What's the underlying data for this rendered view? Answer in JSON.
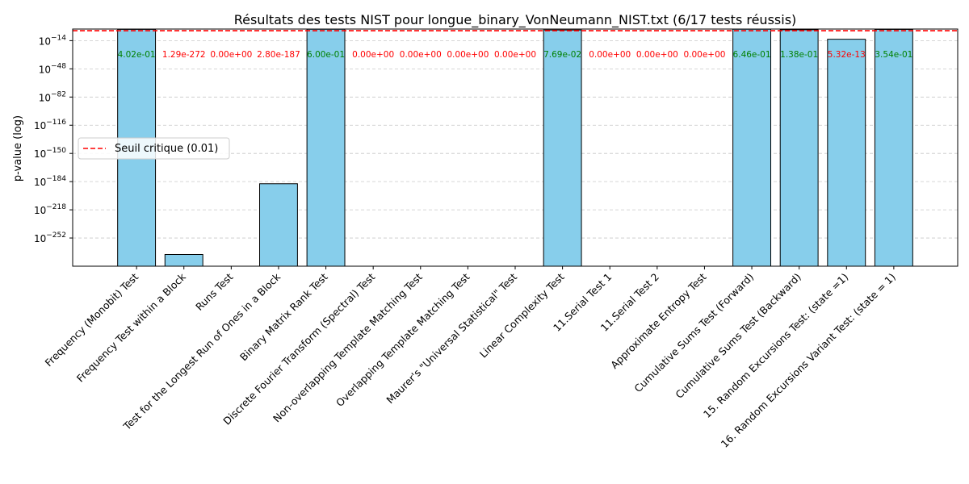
{
  "chart_data": {
    "type": "bar",
    "title": "Résultats des tests NIST pour longue_binary_VonNeumann_NIST.txt (6/17 tests réussis)",
    "xlabel": "",
    "ylabel": "p-value (log)",
    "yscale": "log",
    "ylim_exponent": [
      -286,
      0
    ],
    "yticks_exponent": [
      -14,
      -48,
      -82,
      -116,
      -150,
      -184,
      -218,
      -252
    ],
    "grid": "y-dashed",
    "legend_position": "center-left",
    "threshold": {
      "value": 0.01,
      "label": "Seuil critique (0.01)",
      "color": "#ff0000",
      "style": "dashed"
    },
    "bar_color": "#87ceeb",
    "pass_color": "#008000",
    "fail_color": "#ff0000",
    "categories": [
      "Frequency (Monobit) Test",
      "Frequency Test within a Block",
      "Runs Test",
      "Test for the Longest Run of Ones in a Block",
      "Binary Matrix Rank Test",
      "Discrete Fourier Transform (Spectral) Test",
      "Non-overlapping Template Matching Test",
      "Overlapping Template Matching Test",
      "Maurer's \"Universal Statistical\" Test",
      "Linear Complexity Test",
      "11.Serial Test 1",
      "11.Serial Test 2",
      "Approximate Entropy Test",
      "Cumulative Sums Test (Forward)",
      "Cumulative Sums Test (Backward)",
      "15. Random Excursions Test: (state =1)",
      "16. Random Excursions Variant Test: (state = 1)"
    ],
    "values": [
      0.402,
      1.29e-272,
      0,
      2.8e-187,
      0.6,
      0,
      0,
      0,
      0,
      0.0769,
      0,
      0,
      0,
      0.646,
      0.138,
      5.32e-13,
      0.354
    ],
    "value_labels": [
      "4.02e-01",
      "1.29e-272",
      "0.00e+00",
      "2.80e-187",
      "6.00e-01",
      "0.00e+00",
      "0.00e+00",
      "0.00e+00",
      "0.00e+00",
      "7.69e-02",
      "0.00e+00",
      "0.00e+00",
      "0.00e+00",
      "6.46e-01",
      "1.38e-01",
      "5.32e-13",
      "3.54e-01"
    ],
    "passed": [
      true,
      false,
      false,
      false,
      true,
      false,
      false,
      false,
      false,
      true,
      false,
      false,
      false,
      true,
      true,
      false,
      true
    ]
  }
}
